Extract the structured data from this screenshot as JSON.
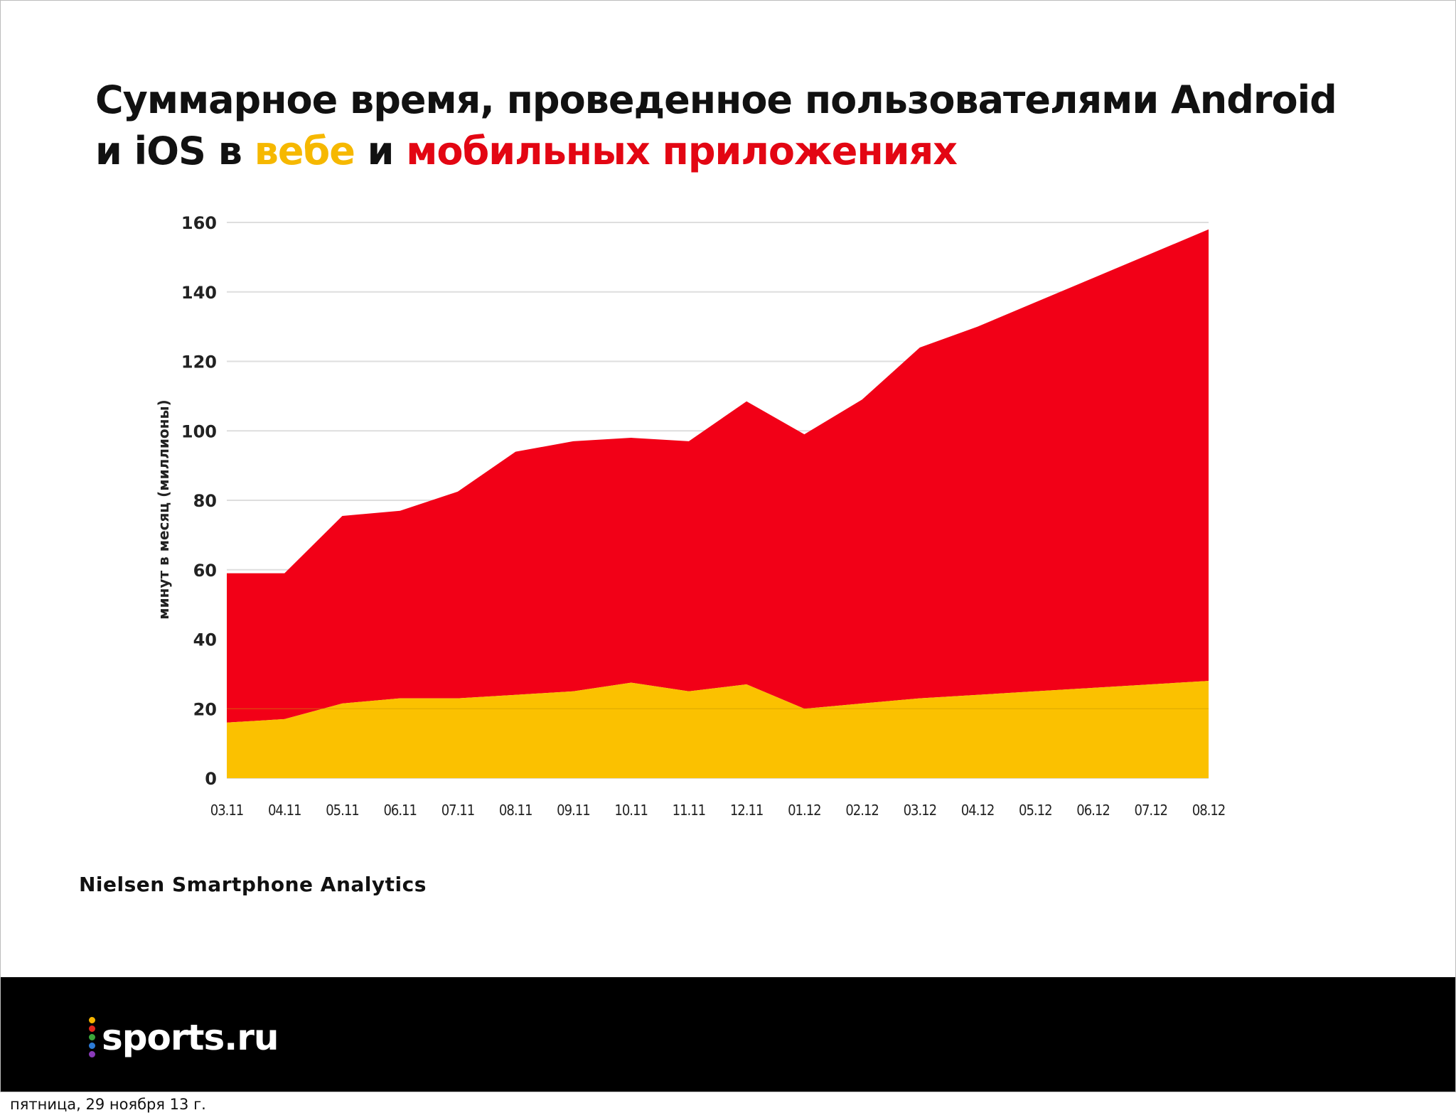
{
  "title": {
    "part1": "Суммарное время, проведенное пользователями Android и iOS в ",
    "web_word": "вебе",
    "part2": " и ",
    "apps_word": "мобильных приложениях"
  },
  "colors": {
    "web": "#fbc100",
    "apps": "#f20017",
    "web_title": "#f6b800",
    "apps_title": "#e30613"
  },
  "chart_data": {
    "type": "area",
    "stacked": true,
    "ylabel": "минут в месяц (миллионы)",
    "ylim": [
      0,
      160
    ],
    "yticks": [
      0,
      20,
      40,
      60,
      80,
      100,
      120,
      140,
      160
    ],
    "categories": [
      "03.11",
      "04.11",
      "05.11",
      "06.11",
      "07.11",
      "08.11",
      "09.11",
      "10.11",
      "11.11",
      "12.11",
      "01.12",
      "02.12",
      "03.12",
      "04.12",
      "05.12",
      "06.12",
      "07.12",
      "08.12"
    ],
    "series": [
      {
        "values": [
          16,
          17,
          21.5,
          23,
          23,
          24,
          25,
          27.5,
          25,
          27,
          20,
          21.5,
          23,
          24,
          25,
          26,
          27,
          28
        ]
      },
      {
        "values": [
          43,
          42,
          54,
          54,
          59.5,
          70,
          72,
          70.5,
          72,
          81.5,
          79,
          87.5,
          101,
          106,
          112,
          118,
          124,
          130
        ]
      }
    ],
    "grid": true
  },
  "source": "Nielsen Smartphone Analytics",
  "footer": {
    "logo_text": "sports.ru",
    "logo_dot_colors": [
      "#f7b500",
      "#e2261c",
      "#3aa63a",
      "#2c7bd6",
      "#8a3ab9"
    ]
  },
  "date_text": "пятница, 29 ноября 13 г."
}
